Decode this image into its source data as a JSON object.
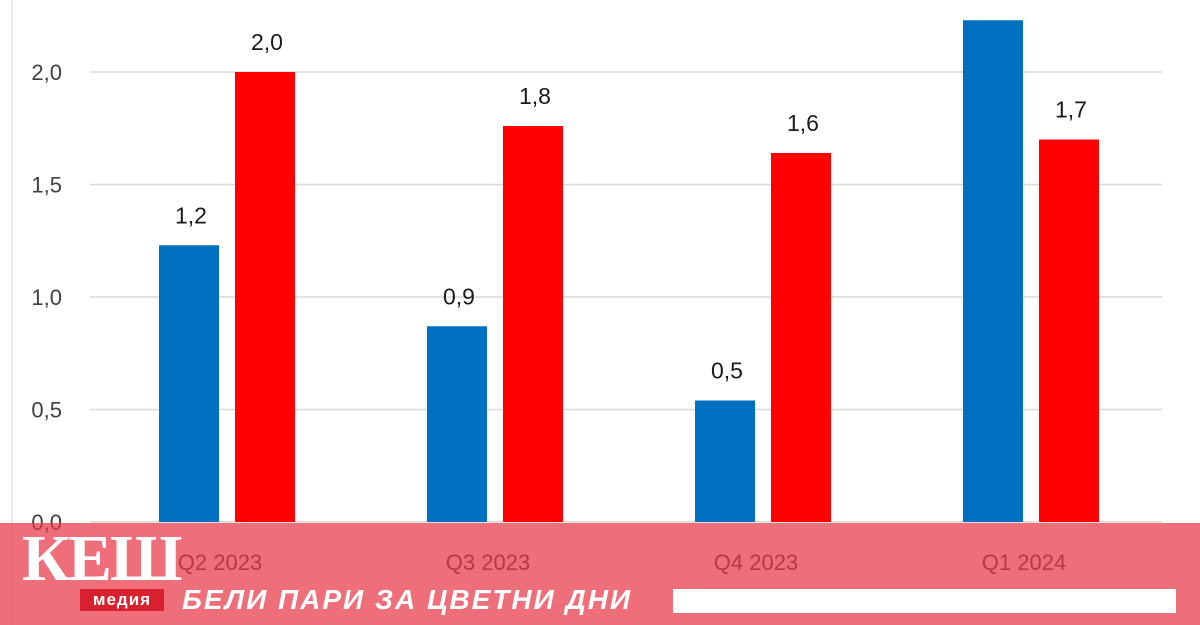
{
  "chart_data": {
    "type": "bar",
    "categories": [
      "Q2 2023",
      "Q3 2023",
      "Q4 2023",
      "Q1 2024"
    ],
    "series": [
      {
        "values": [
          1.23,
          0.87,
          0.54,
          2.23
        ],
        "labels": [
          "1,2",
          "0,9",
          "0,5",
          ""
        ],
        "color": "#0070c0"
      },
      {
        "values": [
          2.0,
          1.76,
          1.64,
          1.7
        ],
        "labels": [
          "2,0",
          "1,8",
          "1,6",
          "1,7"
        ],
        "color": "#ff0000"
      }
    ],
    "yticks": [
      "0,0",
      "0,5",
      "1,0",
      "1,5",
      "2,0"
    ],
    "ylim": [
      0,
      2.25
    ],
    "grid": true,
    "legend": "none",
    "title": "",
    "xlabel": "",
    "ylabel": ""
  },
  "overlay": {
    "logo_text": "КЕШ",
    "logo_subtext": "медия",
    "slogan": "БЕЛИ ПАРИ ЗА ЦВЕТНИ ДНИ",
    "band_color": "#e83846",
    "text_color": "#ffffff"
  }
}
